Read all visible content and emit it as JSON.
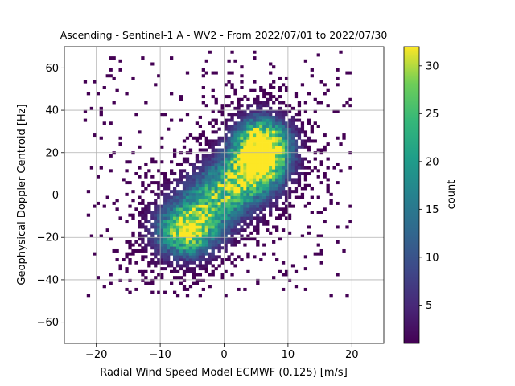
{
  "chart_data": {
    "type": "heatmap",
    "title": "Ascending - Sentinel-1 A - WV2 - From 2022/07/01 to 2022/07/30",
    "xlabel": "Radial Wind Speed Model ECMWF (0.125) [m/s]",
    "ylabel": "Geophysical Doppler Centroid [Hz]",
    "xlim": [
      -25,
      25
    ],
    "ylim": [
      -70,
      70
    ],
    "xticks": [
      -20,
      -10,
      0,
      10,
      20
    ],
    "yticks": [
      -60,
      -40,
      -20,
      0,
      20,
      40,
      60
    ],
    "grid": true,
    "colormap": "viridis",
    "colorbar": {
      "label": "count",
      "range": [
        1,
        32
      ],
      "ticks": [
        5,
        10,
        15,
        20,
        25,
        30
      ]
    },
    "density_clusters": [
      {
        "x": -6,
        "y": -18,
        "sx": 4.5,
        "sy": 11,
        "weight": 1.0
      },
      {
        "x": 6,
        "y": 22,
        "sx": 4.0,
        "sy": 13,
        "weight": 1.25
      },
      {
        "x": 0,
        "y": 2,
        "sx": 5.5,
        "sy": 12,
        "weight": 0.8
      }
    ],
    "peak_count": 32
  }
}
